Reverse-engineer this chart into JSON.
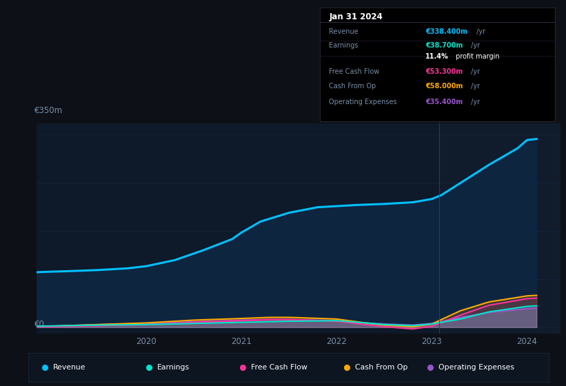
{
  "background_color": "#0d1117",
  "chart_bg_color": "#0e1929",
  "y_label_top": "€350m",
  "y_label_bottom": "€0",
  "ylim": [
    -12,
    370
  ],
  "xlim": [
    2018.85,
    2024.35
  ],
  "vertical_line_x": 2023.08,
  "revenue": {
    "x": [
      2018.85,
      2019.0,
      2019.2,
      2019.5,
      2019.8,
      2020.0,
      2020.3,
      2020.6,
      2020.9,
      2021.0,
      2021.2,
      2021.5,
      2021.8,
      2022.0,
      2022.2,
      2022.5,
      2022.8,
      2023.0,
      2023.1,
      2023.3,
      2023.6,
      2023.9,
      2024.0,
      2024.1
    ],
    "y": [
      100,
      101,
      102,
      104,
      107,
      111,
      122,
      140,
      160,
      172,
      192,
      208,
      218,
      220,
      222,
      224,
      227,
      233,
      240,
      262,
      295,
      325,
      340,
      342
    ],
    "color": "#00c0ff",
    "fill_alpha": 0.9,
    "linewidth": 2.2
  },
  "earnings": {
    "x": [
      2018.85,
      2019.0,
      2019.5,
      2020.0,
      2020.5,
      2021.0,
      2021.5,
      2022.0,
      2022.3,
      2022.5,
      2022.8,
      2023.0,
      2023.3,
      2023.6,
      2024.0,
      2024.1
    ],
    "y": [
      2,
      2.5,
      4,
      5,
      7,
      9,
      11,
      12,
      8,
      5,
      3,
      6,
      15,
      28,
      38,
      39
    ],
    "color": "#00e5cc",
    "fill_alpha": 0.15,
    "linewidth": 1.5
  },
  "free_cash_flow": {
    "x": [
      2018.85,
      2019.0,
      2019.5,
      2020.0,
      2020.5,
      2021.0,
      2021.3,
      2021.5,
      2022.0,
      2022.3,
      2022.5,
      2022.8,
      2023.0,
      2023.3,
      2023.6,
      2024.0,
      2024.1
    ],
    "y": [
      1,
      1,
      3,
      5,
      9,
      12,
      14,
      14,
      11,
      5,
      1,
      -3,
      2,
      22,
      40,
      52,
      53
    ],
    "color": "#ff3399",
    "fill_alpha": 0.12,
    "linewidth": 1.5
  },
  "cash_from_op": {
    "x": [
      2018.85,
      2019.0,
      2019.5,
      2020.0,
      2020.5,
      2021.0,
      2021.3,
      2021.5,
      2022.0,
      2022.3,
      2022.5,
      2022.8,
      2023.0,
      2023.3,
      2023.6,
      2024.0,
      2024.1
    ],
    "y": [
      2,
      2,
      5,
      8,
      13,
      16,
      18,
      18,
      15,
      8,
      4,
      1,
      6,
      30,
      46,
      57,
      58
    ],
    "color": "#ffaa00",
    "fill_alpha": 0.15,
    "linewidth": 1.5
  },
  "operating_expenses": {
    "x": [
      2018.85,
      2019.0,
      2019.5,
      2020.0,
      2020.5,
      2021.0,
      2021.3,
      2021.5,
      2022.0,
      2022.3,
      2022.5,
      2022.8,
      2023.0,
      2023.3,
      2023.6,
      2024.0,
      2024.1
    ],
    "y": [
      1,
      2,
      5,
      7,
      10,
      13,
      14,
      14,
      12,
      8,
      6,
      4,
      7,
      18,
      27,
      34,
      35
    ],
    "color": "#9955cc",
    "fill_alpha": 0.45,
    "linewidth": 1.5
  },
  "info_box": {
    "title": "Jan 31 2024",
    "rows": [
      {
        "label": "Revenue",
        "value": "€338.400m",
        "value_color": "#00c0ff"
      },
      {
        "label": "Earnings",
        "value": "€38.700m",
        "value_color": "#00e5cc"
      },
      {
        "label": "",
        "value": "11.4%",
        "suffix": " profit margin",
        "value_color": "#ffffff"
      },
      {
        "label": "Free Cash Flow",
        "value": "€53.300m",
        "value_color": "#ff3399"
      },
      {
        "label": "Cash From Op",
        "value": "€58.000m",
        "value_color": "#ffaa00"
      },
      {
        "label": "Operating Expenses",
        "value": "€35.400m",
        "value_color": "#9955cc"
      }
    ]
  },
  "legend": [
    {
      "label": "Revenue",
      "color": "#00c0ff"
    },
    {
      "label": "Earnings",
      "color": "#00e5cc"
    },
    {
      "label": "Free Cash Flow",
      "color": "#ff3399"
    },
    {
      "label": "Cash From Op",
      "color": "#ffaa00"
    },
    {
      "label": "Operating Expenses",
      "color": "#9955cc"
    }
  ],
  "grid_color": "#1a3050",
  "grid_alpha": 0.7,
  "text_color": "#7a8fa8",
  "revenue_fill_color": "#0e2540"
}
